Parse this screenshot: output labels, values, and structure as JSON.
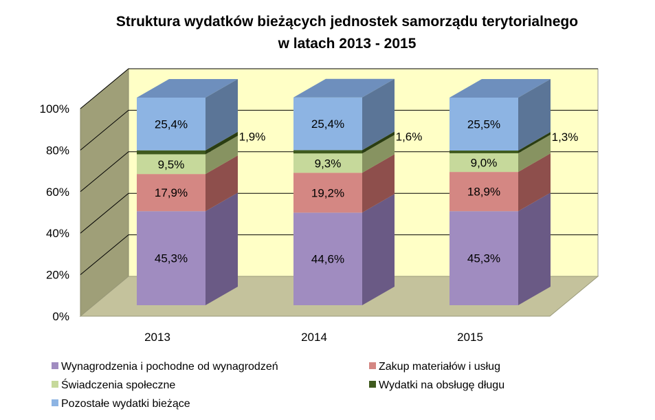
{
  "chart_data": {
    "type": "bar",
    "stacked": true,
    "percent": true,
    "three_d": true,
    "title": [
      "Struktura wydatków bieżących jednostek samorządu terytorialnego",
      "w latach 2013 - 2015"
    ],
    "categories": [
      "2013",
      "2014",
      "2015"
    ],
    "ylim": [
      0,
      100
    ],
    "yticks": [
      "0%",
      "20%",
      "40%",
      "60%",
      "80%",
      "100%"
    ],
    "grid": true,
    "legend_position": "bottom",
    "series": [
      {
        "name": "Wynagrodzenia i pochodne od wynagrodzeń",
        "values": [
          45.3,
          44.6,
          45.3
        ],
        "labels": [
          "45,3%",
          "44,6%",
          "45,3%"
        ],
        "color": "#a08cc0",
        "side_color": "#6a5a85",
        "top_color": "#8f7ab0"
      },
      {
        "name": "Zakup materiałów i usług",
        "values": [
          17.9,
          19.2,
          18.9
        ],
        "labels": [
          "17,9%",
          "19,2%",
          "18,9%"
        ],
        "color": "#d48783",
        "side_color": "#8e4f4c",
        "top_color": "#c27470"
      },
      {
        "name": "Świadczenia społeczne",
        "values": [
          9.5,
          9.3,
          9.0
        ],
        "labels": [
          "9,5%",
          "9,3%",
          "9,0%"
        ],
        "color": "#c6d99b",
        "side_color": "#879361",
        "top_color": "#b4c885"
      },
      {
        "name": "Wydatki na obsługę długu",
        "values": [
          1.9,
          1.6,
          1.3
        ],
        "labels": [
          "1,9%",
          "1,6%",
          "1,3%"
        ],
        "color": "#3f5a1e",
        "side_color": "#2a3d12",
        "top_color": "#4d6b26"
      },
      {
        "name": "Pozostałe wydatki bieżące",
        "values": [
          25.4,
          25.4,
          25.5
        ],
        "labels": [
          "25,4%",
          "25,4%",
          "25,5%"
        ],
        "color": "#8db4e3",
        "side_color": "#5b7597",
        "top_color": "#6e8fbd"
      }
    ],
    "colors": {
      "back_wall": "#ffffc6",
      "side_wall": "#9f9f78",
      "floor": "#c4c29c",
      "grid": "#000000"
    }
  }
}
